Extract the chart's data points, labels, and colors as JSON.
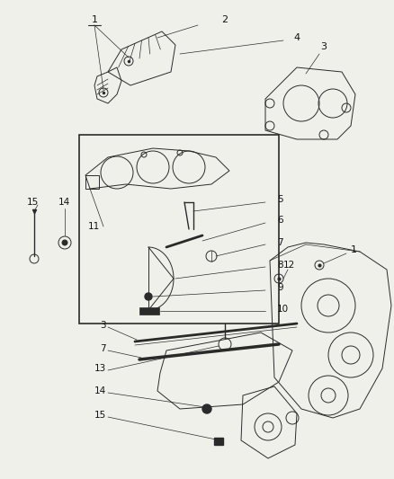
{
  "background_color": "#f0f0eb",
  "line_color": "#2a2a2a",
  "label_color": "#111111",
  "fig_width": 4.39,
  "fig_height": 5.33,
  "dpi": 100
}
